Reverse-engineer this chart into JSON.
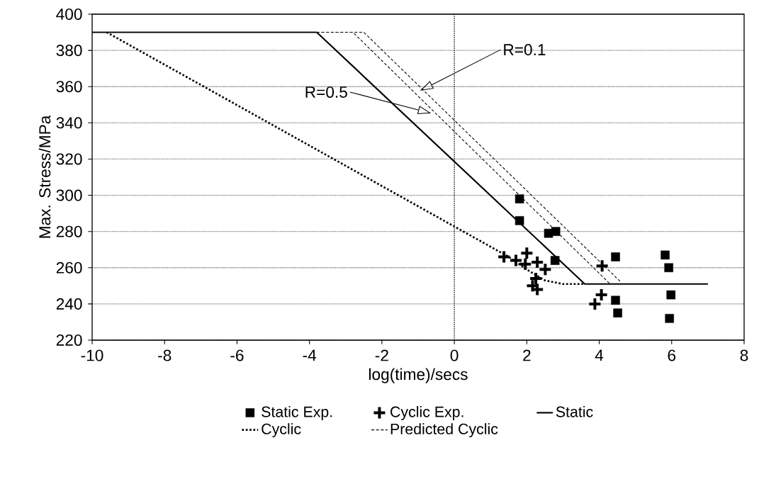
{
  "chart_data": {
    "type": "line",
    "xlabel": "log(time)/secs",
    "ylabel": "Max. Stress/MPa",
    "xlim": [
      -10,
      8
    ],
    "ylim": [
      220,
      400
    ],
    "xticks": [
      -10,
      -8,
      -6,
      -4,
      -2,
      0,
      2,
      4,
      6,
      8
    ],
    "yticks": [
      220,
      240,
      260,
      280,
      300,
      320,
      340,
      360,
      380,
      400
    ],
    "grid": "y",
    "legend": "bottom",
    "ref_lines": [
      {
        "axis": "x",
        "value": 0,
        "line_style": "dotted"
      }
    ],
    "annotations": [
      "R=0.1",
      "R=0.5"
    ],
    "series": [
      {
        "name": "Static Exp.",
        "type": "scatter",
        "marker": "square",
        "color": "#000000",
        "x": [
          1.8,
          1.8,
          2.6,
          2.8,
          2.78,
          4.45,
          5.82,
          5.92,
          5.98,
          5.94,
          4.51,
          4.45
        ],
        "values": [
          298,
          286,
          279,
          280,
          264,
          266,
          267,
          260,
          245,
          232,
          235,
          242
        ]
      },
      {
        "name": "Cyclic Exp.",
        "type": "scatter",
        "marker": "cross",
        "color": "#000000",
        "x": [
          2.0,
          1.37,
          1.7,
          2.29,
          1.96,
          2.51,
          2.25,
          2.29,
          2.16,
          4.08,
          4.06,
          3.88
        ],
        "values": [
          268,
          266,
          264,
          263,
          262,
          259,
          254,
          248,
          250,
          261,
          245,
          240
        ]
      },
      {
        "name": "Static",
        "line_style": "solid",
        "color": "#000000",
        "x": [
          -10,
          -3.8,
          3.6,
          7
        ],
        "values": [
          390,
          390,
          251,
          251
        ]
      },
      {
        "name": "Cyclic",
        "line_style": "dotted",
        "color": "#000000",
        "x": [
          -9.6,
          1.5,
          2.0,
          2.5,
          3.0,
          3.6
        ],
        "values": [
          390,
          266,
          259,
          253,
          251,
          251
        ]
      },
      {
        "name": "Predicted Cyclic",
        "line_style": "dashed",
        "color": "#000000",
        "x": [
          -3.8,
          -2.5,
          4.6
        ],
        "values": [
          390,
          390,
          252
        ]
      },
      {
        "line_style": "dashed",
        "color": "#000000",
        "x": [
          -3.8,
          -2.8,
          4.3
        ],
        "values": [
          390,
          390,
          251
        ]
      }
    ]
  }
}
